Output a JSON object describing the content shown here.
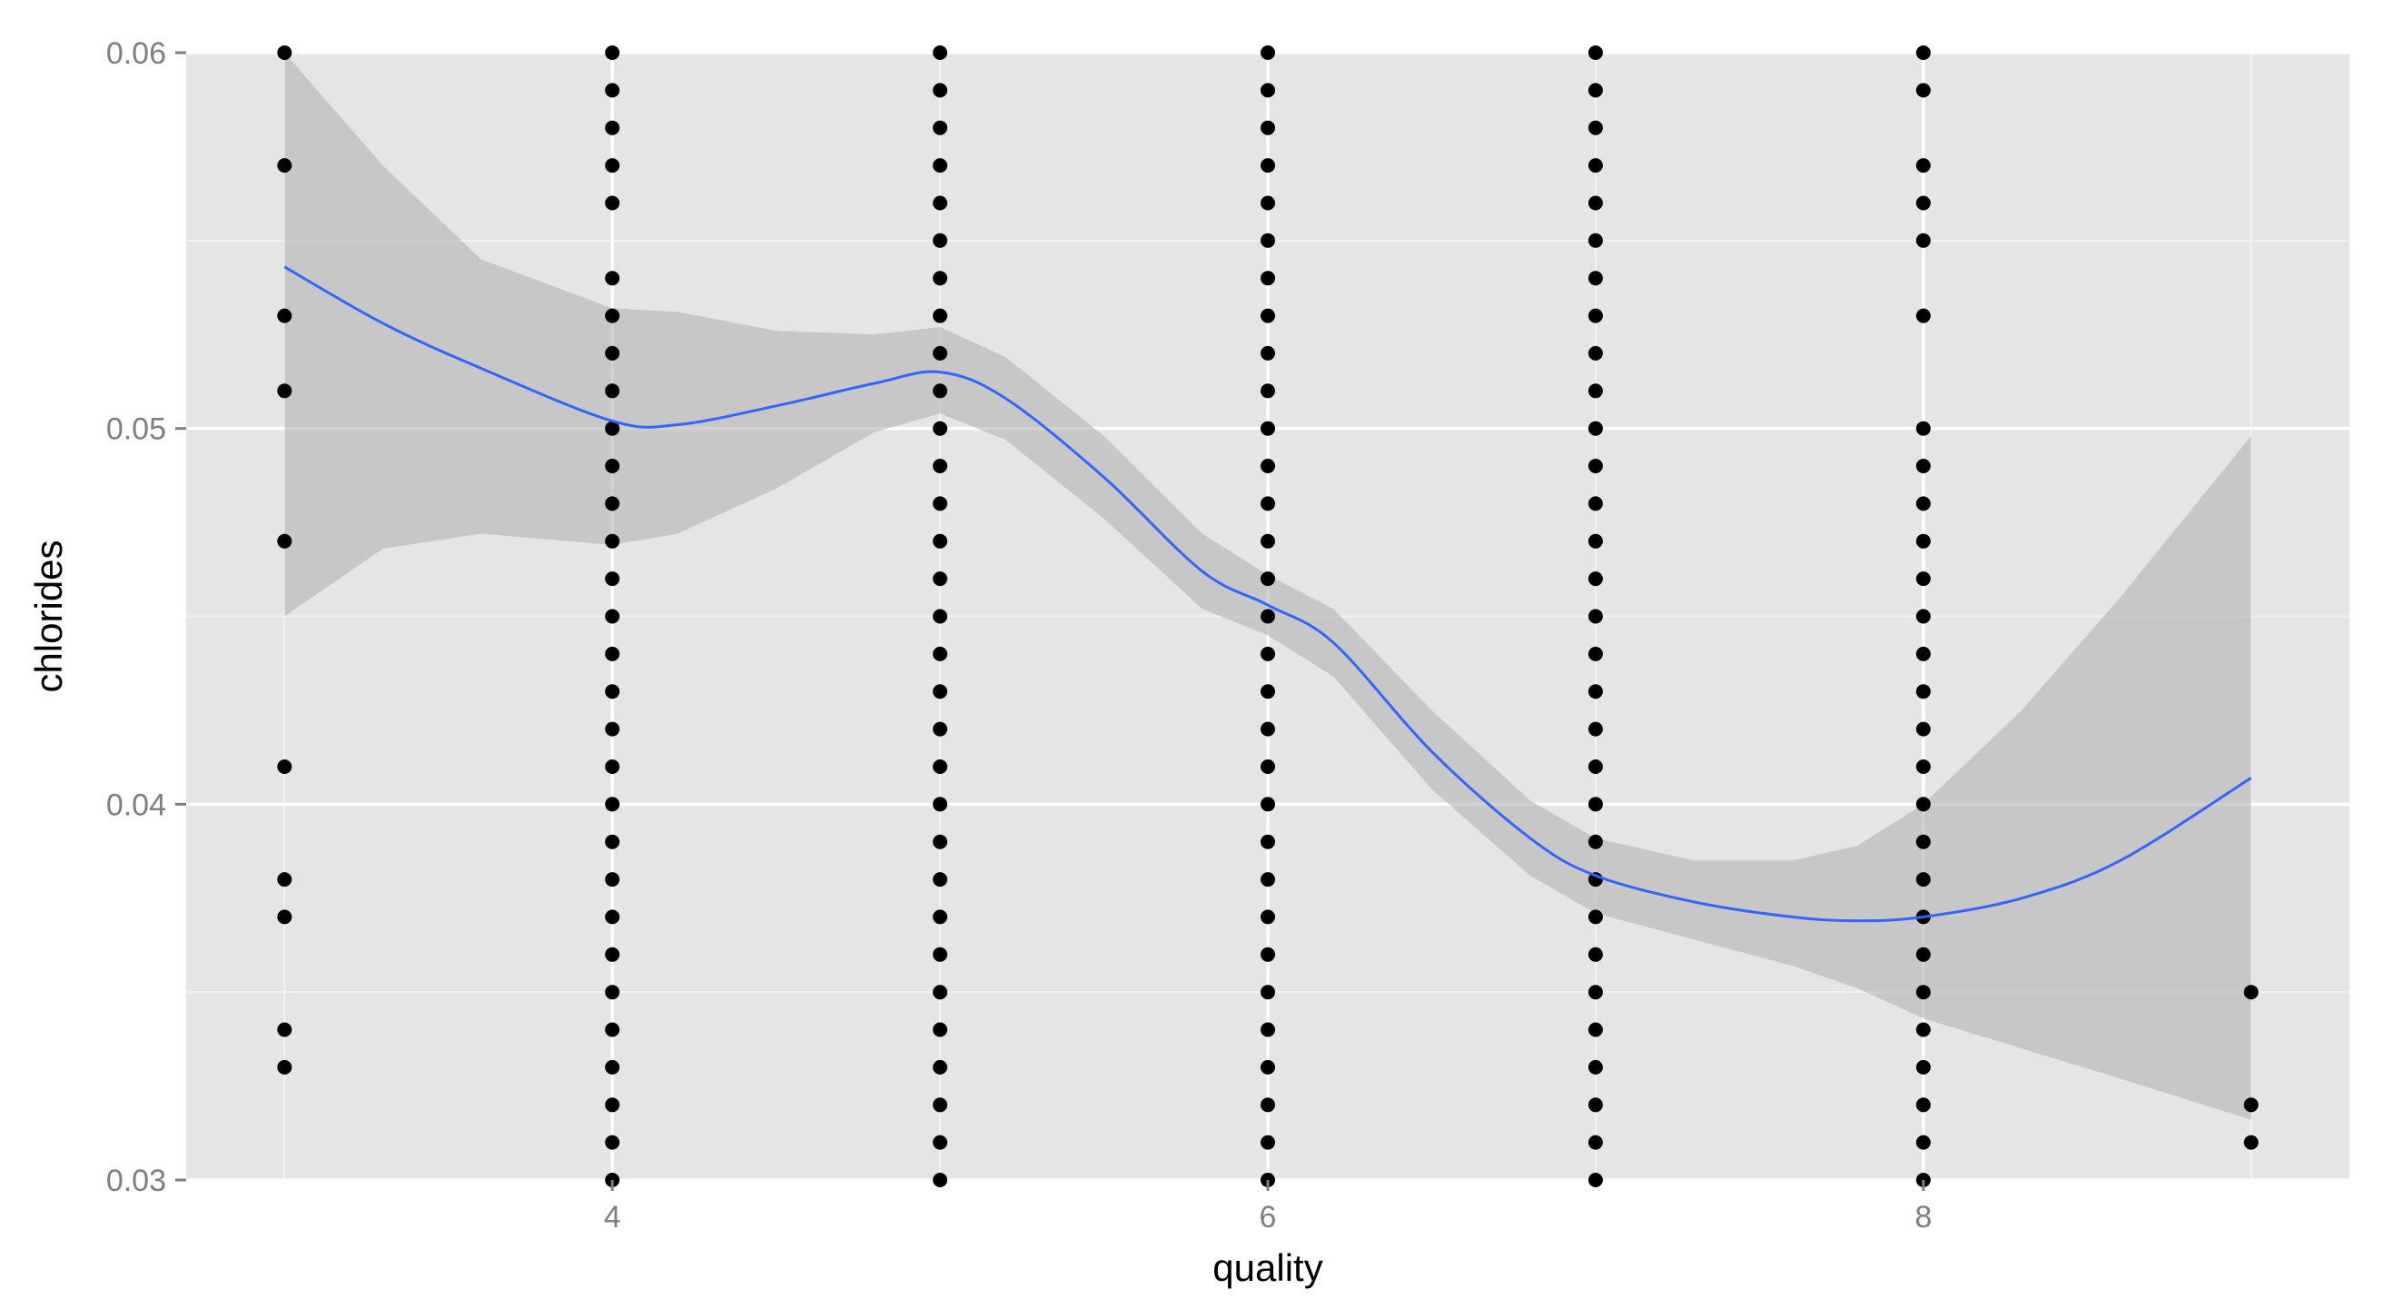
{
  "chart_data": {
    "type": "scatter",
    "title": "",
    "xlabel": "quality",
    "ylabel": "chlorides",
    "xlim": [
      2.7,
      9.3
    ],
    "ylim": [
      0.03,
      0.06
    ],
    "x_ticks": [
      4,
      6,
      8
    ],
    "x_tick_labels": [
      "4",
      "6",
      "8"
    ],
    "y_ticks": [
      0.03,
      0.04,
      0.05,
      0.06
    ],
    "y_tick_labels": [
      "0.03",
      "0.04",
      "0.05",
      "0.06"
    ],
    "grid": true,
    "legend": "none",
    "colors": {
      "panel_background": "#e5e5e5",
      "grid_major": "#ffffff",
      "grid_minor": "#f2f2f2",
      "points": "#000000",
      "smooth_line": "#3366ff",
      "confidence_band": "#b3b3b3"
    },
    "points": [
      {
        "x": 3,
        "y": [
          0.033,
          0.034,
          0.037,
          0.038,
          0.041,
          0.047,
          0.051,
          0.053,
          0.057,
          0.06
        ]
      },
      {
        "x": 4,
        "y": [
          0.03,
          0.031,
          0.032,
          0.033,
          0.034,
          0.035,
          0.036,
          0.037,
          0.038,
          0.039,
          0.04,
          0.041,
          0.042,
          0.043,
          0.044,
          0.045,
          0.046,
          0.047,
          0.048,
          0.049,
          0.05,
          0.051,
          0.052,
          0.053,
          0.054,
          0.056,
          0.057,
          0.058,
          0.059,
          0.06
        ]
      },
      {
        "x": 5,
        "y": [
          0.03,
          0.031,
          0.032,
          0.033,
          0.034,
          0.035,
          0.036,
          0.037,
          0.038,
          0.039,
          0.04,
          0.041,
          0.042,
          0.043,
          0.044,
          0.045,
          0.046,
          0.047,
          0.048,
          0.049,
          0.05,
          0.051,
          0.052,
          0.053,
          0.054,
          0.055,
          0.056,
          0.057,
          0.058,
          0.059,
          0.06
        ]
      },
      {
        "x": 6,
        "y": [
          0.03,
          0.031,
          0.032,
          0.033,
          0.034,
          0.035,
          0.036,
          0.037,
          0.038,
          0.039,
          0.04,
          0.041,
          0.042,
          0.043,
          0.044,
          0.045,
          0.046,
          0.047,
          0.048,
          0.049,
          0.05,
          0.051,
          0.052,
          0.053,
          0.054,
          0.055,
          0.056,
          0.057,
          0.058,
          0.059,
          0.06
        ]
      },
      {
        "x": 7,
        "y": [
          0.03,
          0.031,
          0.032,
          0.033,
          0.034,
          0.035,
          0.036,
          0.037,
          0.038,
          0.039,
          0.04,
          0.041,
          0.042,
          0.043,
          0.044,
          0.045,
          0.046,
          0.047,
          0.048,
          0.049,
          0.05,
          0.051,
          0.052,
          0.053,
          0.054,
          0.055,
          0.056,
          0.057,
          0.058,
          0.059,
          0.06
        ]
      },
      {
        "x": 8,
        "y": [
          0.03,
          0.031,
          0.032,
          0.033,
          0.034,
          0.035,
          0.036,
          0.037,
          0.038,
          0.039,
          0.04,
          0.041,
          0.042,
          0.043,
          0.044,
          0.045,
          0.046,
          0.047,
          0.048,
          0.049,
          0.05,
          0.053,
          0.055,
          0.056,
          0.057,
          0.059,
          0.06
        ]
      },
      {
        "x": 9,
        "y": [
          0.031,
          0.032,
          0.035
        ]
      }
    ],
    "smooth": {
      "x": [
        3.0,
        3.3,
        3.6,
        4.0,
        4.2,
        4.5,
        4.8,
        5.0,
        5.2,
        5.5,
        5.8,
        6.0,
        6.2,
        6.5,
        6.8,
        7.0,
        7.3,
        7.6,
        7.8,
        8.0,
        8.3,
        8.6,
        9.0
      ],
      "y": [
        0.0543,
        0.0528,
        0.0516,
        0.0502,
        0.0501,
        0.0506,
        0.0512,
        0.0515,
        0.0508,
        0.0487,
        0.0462,
        0.0453,
        0.0443,
        0.0414,
        0.0391,
        0.0381,
        0.0374,
        0.037,
        0.0369,
        0.037,
        0.0375,
        0.0385,
        0.0407
      ],
      "upper": [
        0.061,
        0.057,
        0.0545,
        0.0532,
        0.0531,
        0.0526,
        0.0525,
        0.0527,
        0.0519,
        0.0498,
        0.0472,
        0.0461,
        0.0452,
        0.0425,
        0.0401,
        0.0391,
        0.0385,
        0.0385,
        0.0389,
        0.04,
        0.0425,
        0.0455,
        0.0498
      ],
      "lower": [
        0.045,
        0.0468,
        0.0472,
        0.0469,
        0.0472,
        0.0484,
        0.0499,
        0.0504,
        0.0497,
        0.0476,
        0.0452,
        0.0445,
        0.0434,
        0.0404,
        0.0381,
        0.0371,
        0.0364,
        0.0357,
        0.0351,
        0.0343,
        0.0335,
        0.0327,
        0.0316
      ]
    }
  }
}
